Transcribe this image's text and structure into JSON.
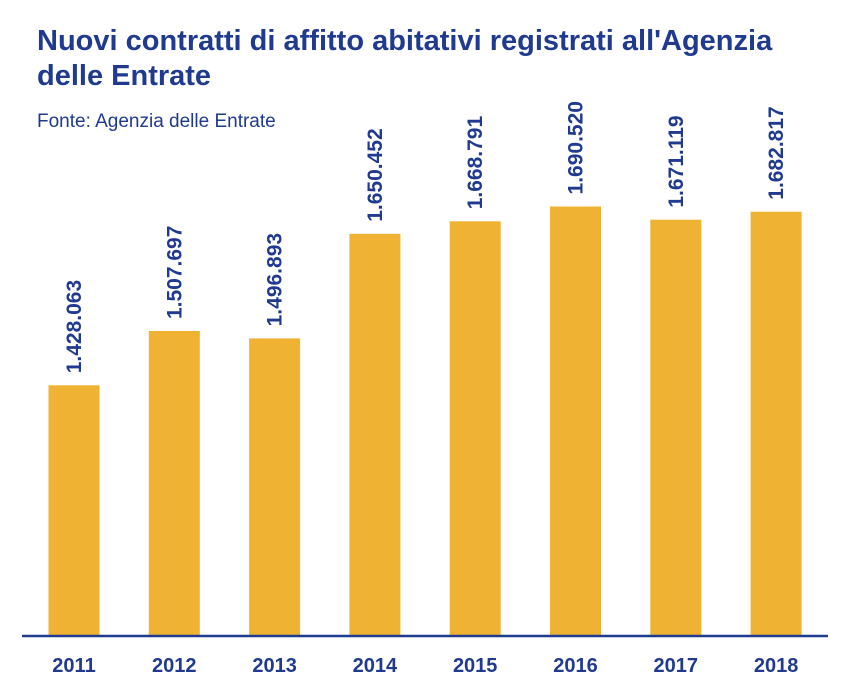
{
  "header": {
    "title": "Nuovi contratti di affitto abitativi registrati all'Agenzia delle Entrate",
    "subtitle": "Fonte: Agenzia delle Entrate"
  },
  "colors": {
    "bar": "#f0b232",
    "text": "#1f3a8f",
    "axis": "#1f3a8f"
  },
  "chart_data": {
    "type": "bar",
    "title": "Nuovi contratti di affitto abitativi registrati all'Agenzia delle Entrate",
    "subtitle": "Fonte: Agenzia delle Entrate",
    "categories": [
      "2011",
      "2012",
      "2013",
      "2014",
      "2015",
      "2016",
      "2017",
      "2018"
    ],
    "values": [
      1428063,
      1507697,
      1496893,
      1650452,
      1668791,
      1690520,
      1671119,
      1682817
    ],
    "value_labels": [
      "1.428.063",
      "1.507.697",
      "1.496.893",
      "1.650.452",
      "1.668.791",
      "1.690.520",
      "1.671.119",
      "1.682.817"
    ],
    "xlabel": "",
    "ylabel": "",
    "ylim": [
      1060000,
      1700000
    ],
    "grid": false,
    "legend": "none"
  }
}
